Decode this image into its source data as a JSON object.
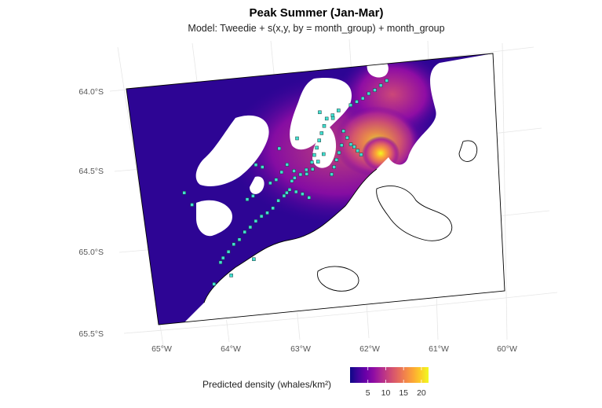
{
  "title": "Peak Summer (Jan-Mar)",
  "subtitle": "Model: Tweedie + s(x,y, by = month_group) + month_group",
  "axes": {
    "lat_labels": [
      "64.0°S",
      "64.5°S",
      "65.0°S",
      "65.5°S"
    ],
    "lon_labels": [
      "65°W",
      "64°W",
      "63°W",
      "62°W",
      "61°W",
      "60°W"
    ],
    "lat_values": [
      -64.0,
      -64.5,
      -65.0,
      -65.5
    ],
    "lon_values": [
      -65,
      -64,
      -63,
      -62,
      -61,
      -60
    ]
  },
  "legend": {
    "title": "Predicted density (whales/km²)",
    "ticks": [
      "5",
      "10",
      "15",
      "20"
    ],
    "tick_values": [
      5,
      10,
      15,
      20
    ],
    "range": [
      0,
      22
    ],
    "palette": [
      "#0d0887",
      "#41049d",
      "#6a00a8",
      "#8f0da4",
      "#b12a90",
      "#cc4778",
      "#e16462",
      "#f2844b",
      "#fca636",
      "#fcce25",
      "#f0f921"
    ]
  },
  "colors": {
    "land": "#ffffff",
    "coastline": "#000000",
    "survey_points": "#40e0d0",
    "hotspot": "#f0f921"
  },
  "survey_points": [
    [
      -61.4,
      -63.97
    ],
    [
      -61.5,
      -64.0
    ],
    [
      -61.6,
      -64.03
    ],
    [
      -61.7,
      -64.05
    ],
    [
      -61.8,
      -64.08
    ],
    [
      -61.9,
      -64.1
    ],
    [
      -62.0,
      -64.12
    ],
    [
      -62.2,
      -64.15
    ],
    [
      -62.3,
      -64.18
    ],
    [
      -62.4,
      -64.2
    ],
    [
      -62.45,
      -64.25
    ],
    [
      -62.5,
      -64.3
    ],
    [
      -62.55,
      -64.35
    ],
    [
      -62.6,
      -64.4
    ],
    [
      -62.65,
      -64.45
    ],
    [
      -62.7,
      -64.5
    ],
    [
      -62.8,
      -64.55
    ],
    [
      -62.9,
      -64.58
    ],
    [
      -63.0,
      -64.6
    ],
    [
      -63.05,
      -64.62
    ],
    [
      -63.1,
      -64.68
    ],
    [
      -63.15,
      -64.7
    ],
    [
      -63.2,
      -64.72
    ],
    [
      -63.3,
      -64.75
    ],
    [
      -63.4,
      -64.8
    ],
    [
      -63.5,
      -64.83
    ],
    [
      -63.6,
      -64.85
    ],
    [
      -63.7,
      -64.88
    ],
    [
      -63.8,
      -64.92
    ],
    [
      -63.9,
      -64.95
    ],
    [
      -64.0,
      -65.0
    ],
    [
      -64.1,
      -65.03
    ],
    [
      -64.2,
      -65.08
    ],
    [
      -64.3,
      -65.12
    ],
    [
      -64.35,
      -65.15
    ],
    [
      -62.15,
      -64.3
    ],
    [
      -62.1,
      -64.35
    ],
    [
      -62.05,
      -64.4
    ],
    [
      -62.0,
      -64.42
    ],
    [
      -61.95,
      -64.45
    ],
    [
      -61.9,
      -64.48
    ],
    [
      -62.2,
      -64.4
    ],
    [
      -62.25,
      -64.45
    ],
    [
      -62.3,
      -64.5
    ],
    [
      -62.35,
      -64.55
    ],
    [
      -62.5,
      -64.45
    ],
    [
      -62.6,
      -64.5
    ],
    [
      -62.7,
      -64.55
    ],
    [
      -62.8,
      -64.58
    ],
    [
      -63.0,
      -64.55
    ],
    [
      -63.1,
      -64.5
    ],
    [
      -63.2,
      -64.55
    ],
    [
      -63.3,
      -64.6
    ],
    [
      -63.4,
      -64.62
    ],
    [
      -63.0,
      -64.7
    ],
    [
      -62.9,
      -64.72
    ],
    [
      -62.8,
      -64.75
    ],
    [
      -63.5,
      -64.5
    ],
    [
      -63.6,
      -64.48
    ],
    [
      -64.8,
      -64.63
    ],
    [
      -64.7,
      -64.72
    ],
    [
      -63.7,
      -64.7
    ],
    [
      -63.8,
      -64.72
    ],
    [
      -62.3,
      -64.2
    ],
    [
      -62.5,
      -64.15
    ],
    [
      -62.9,
      -64.32
    ],
    [
      -63.2,
      -64.38
    ],
    [
      -62.4,
      -64.6
    ],
    [
      -64.5,
      -65.3
    ],
    [
      -64.2,
      -65.25
    ],
    [
      -63.8,
      -65.15
    ]
  ]
}
